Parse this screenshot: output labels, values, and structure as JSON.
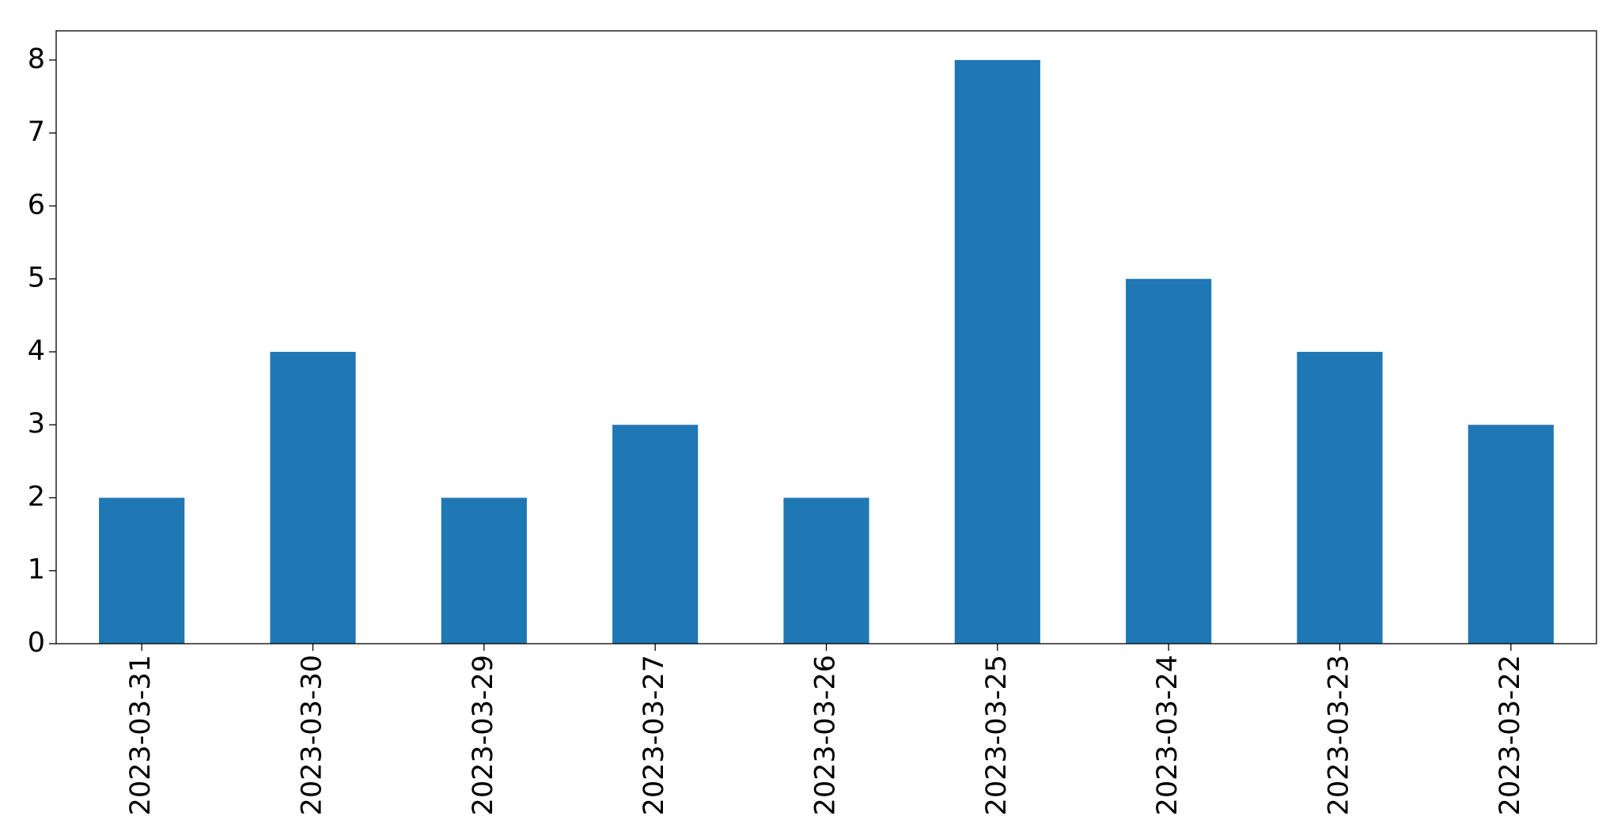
{
  "chart_data": {
    "type": "bar",
    "categories": [
      "2023-03-31",
      "2023-03-30",
      "2023-03-29",
      "2023-03-27",
      "2023-03-26",
      "2023-03-25",
      "2023-03-24",
      "2023-03-23",
      "2023-03-22"
    ],
    "values": [
      2,
      4,
      2,
      3,
      2,
      8,
      5,
      4,
      3
    ],
    "color": "#1f77b4",
    "ylim": [
      0,
      8.4
    ],
    "yticks": [
      0,
      1,
      2,
      3,
      4,
      5,
      6,
      7,
      8
    ],
    "grid": false
  }
}
